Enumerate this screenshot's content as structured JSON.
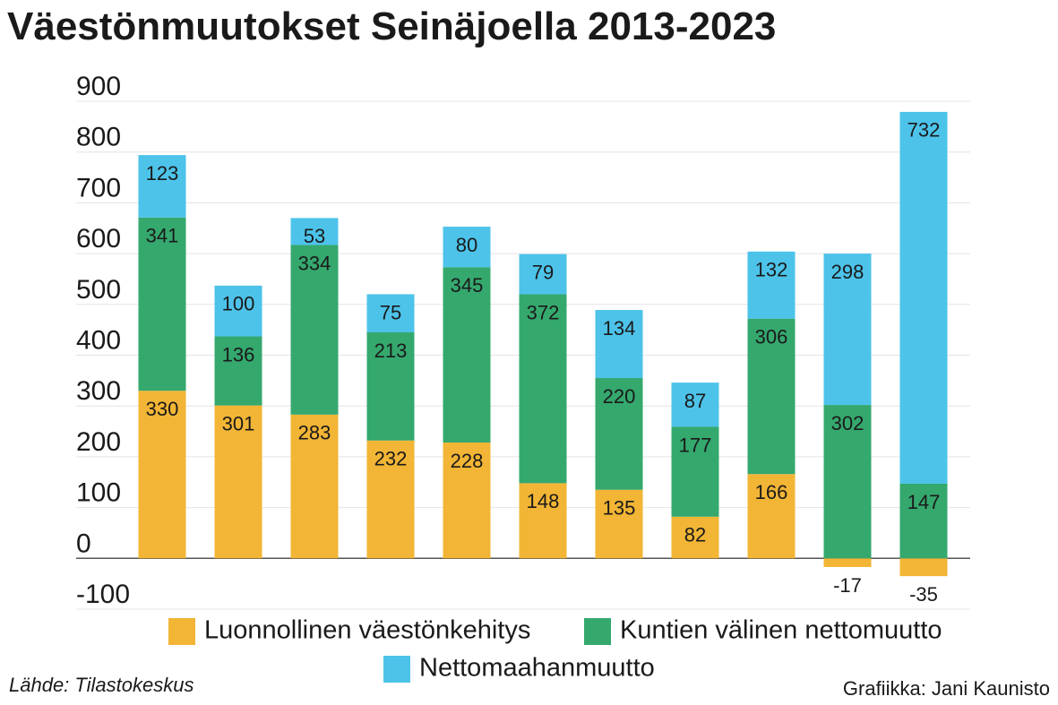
{
  "chart_data": {
    "type": "stacked-bar",
    "title": "Väestönmuutokset Seinäjoella 2013-2023",
    "categories": [
      null,
      null,
      null,
      null,
      null,
      null,
      null,
      null,
      null,
      null,
      null
    ],
    "series": [
      {
        "name": "Luonnollinen väestönkehitys",
        "color": "#f2b535",
        "values": [
          330,
          301,
          283,
          232,
          228,
          148,
          135,
          82,
          166,
          -17,
          -35
        ]
      },
      {
        "name": "Kuntien välinen nettomuutto",
        "color": "#35a86e",
        "values": [
          341,
          136,
          334,
          213,
          345,
          372,
          220,
          177,
          306,
          302,
          147
        ]
      },
      {
        "name": "Nettomaahanmuutto",
        "color": "#4dc3ea",
        "values": [
          123,
          100,
          53,
          75,
          80,
          79,
          134,
          87,
          132,
          298,
          732
        ]
      }
    ],
    "ylim": [
      -100,
      900
    ],
    "yticks": [
      -100,
      0,
      100,
      200,
      300,
      400,
      500,
      600,
      700,
      800,
      900
    ],
    "grid": true,
    "source": "Lähde: Tilastokeskus",
    "credit": "Grafiikka: Jani Kaunisto"
  }
}
